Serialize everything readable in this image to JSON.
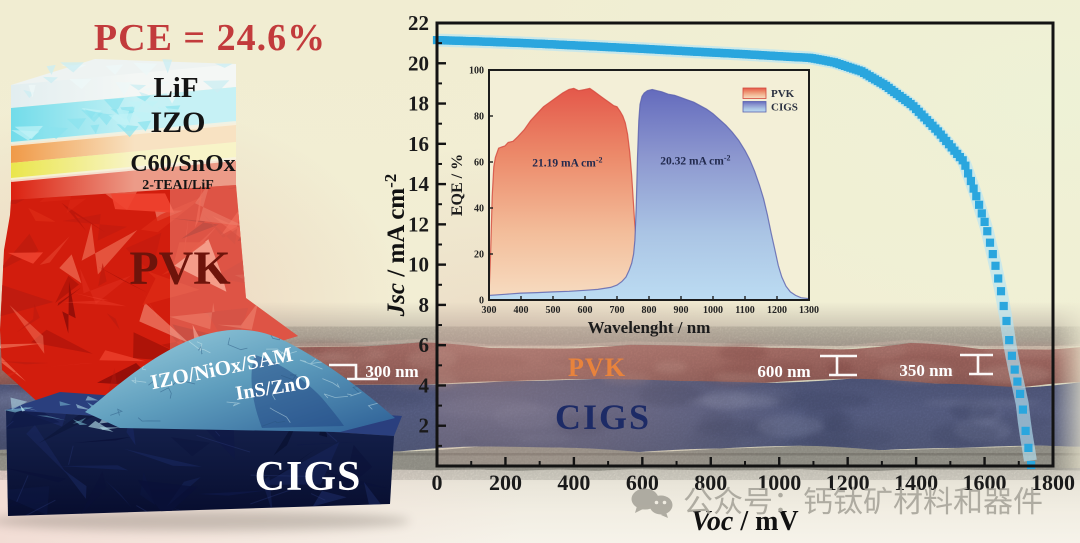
{
  "title": {
    "pce_label": "PCE = 24.6%",
    "color": "#c23b3c"
  },
  "schematic": {
    "layers": [
      {
        "label": "LiF",
        "color": "#e8f0f2"
      },
      {
        "label": "IZO",
        "color": "#56d2e4"
      },
      {
        "label": "C60/SnOx",
        "color": "#f0913c"
      },
      {
        "label": "2-TEAI/LiF",
        "color": "#ece84e"
      },
      {
        "label": "PVK",
        "color": "#d9200f"
      }
    ],
    "dome_labels": [
      {
        "label": "IZO/NiOx/SAM"
      },
      {
        "label": "InS/ZnO"
      }
    ],
    "base_label": "CIGS",
    "base_color": "#111c4e",
    "dome_color": "#4f8fae"
  },
  "sem": {
    "pvk_label": "PVK",
    "cigs_label": "CIGS",
    "pvk_label_color": "#e8833c",
    "cigs_label_color": "#1d2b66",
    "annotations": [
      {
        "text": "300 nm"
      },
      {
        "text": "600 nm"
      },
      {
        "text": "350 nm"
      }
    ],
    "pvk_band_color": "#b4736e",
    "cigs_band_color": "#5a6288",
    "substrate_color": "#a09e94"
  },
  "watermark": {
    "text": "公众号：钙钛矿材料和器件",
    "color": "#a8a59b"
  },
  "chart_data": [
    {
      "name": "jv_curve",
      "type": "scatter",
      "title": "",
      "xlabel": "Voc / mV",
      "xlabel_italic": "Voc",
      "xlabel_rest": " / mV",
      "ylabel": "Jsc / mA cm-2",
      "ylabel_italic": "Jsc",
      "ylabel_rest": " / mA cm",
      "ylabel_sup": "-2",
      "xlim": [
        0,
        1800
      ],
      "ylim": [
        0,
        22
      ],
      "x_ticks": [
        0,
        200,
        400,
        600,
        800,
        1000,
        1200,
        1400,
        1600,
        1800
      ],
      "y_ticks": [
        2,
        4,
        6,
        8,
        10,
        12,
        14,
        16,
        18,
        20,
        22
      ],
      "marker_color": "#2aa6de",
      "halo_color": "#b5e3f5",
      "series": [
        {
          "name": "J-V",
          "x": [
            0,
            150,
            300,
            450,
            600,
            750,
            900,
            1030,
            1090,
            1160,
            1240,
            1310,
            1390,
            1465,
            1540,
            1576,
            1606,
            1630,
            1649,
            1664,
            1675,
            1689,
            1700,
            1710,
            1716,
            1723,
            1731,
            1736
          ],
          "y": [
            21.15,
            21.07,
            20.97,
            20.85,
            20.72,
            20.58,
            20.45,
            20.32,
            20.27,
            20.05,
            19.6,
            18.9,
            17.9,
            16.6,
            15.1,
            13.4,
            11.8,
            10.1,
            8.6,
            7.2,
            5.9,
            4.7,
            3.9,
            3.1,
            2.2,
            1.4,
            0.6,
            0.05
          ]
        }
      ]
    },
    {
      "name": "eqe_inset",
      "type": "area",
      "xlabel": "Wavelenght / nm",
      "ylabel": "EQE / %",
      "xlim": [
        300,
        1300
      ],
      "ylim": [
        0,
        100
      ],
      "x_ticks": [
        300,
        400,
        500,
        600,
        700,
        800,
        900,
        1000,
        1100,
        1200,
        1300
      ],
      "y_ticks": [
        0,
        20,
        40,
        60,
        80,
        100
      ],
      "legend": [
        {
          "label": "PVK",
          "color_top": "#e4584a",
          "color_bottom": "#f7ddc2"
        },
        {
          "label": "CIGS",
          "color_top": "#646bbd",
          "color_bottom": "#bcdcf2"
        }
      ],
      "annotations": [
        {
          "text": "21.19 mA cm",
          "sup": "-2",
          "x": 545,
          "y": 58
        },
        {
          "text": "20.32 mA cm",
          "sup": "-2",
          "x": 945,
          "y": 59
        }
      ],
      "series": [
        {
          "name": "PVK",
          "x": [
            300,
            305,
            310,
            315,
            320,
            330,
            340,
            350,
            360,
            375,
            390,
            410,
            430,
            450,
            470,
            490,
            510,
            530,
            550,
            565,
            580,
            600,
            615,
            630,
            645,
            660,
            675,
            690,
            700,
            710,
            718,
            726,
            733,
            740,
            746,
            751,
            755,
            760,
            766,
            772,
            780,
            788,
            795,
            803,
            812,
            820,
            830
          ],
          "y": [
            2,
            20,
            45,
            58,
            62,
            66,
            66.5,
            67,
            68.5,
            69,
            71,
            74,
            78,
            81,
            84,
            86,
            88,
            90,
            91.5,
            92,
            91,
            91.5,
            92,
            90.5,
            89,
            87.5,
            86,
            84.5,
            84,
            82,
            80,
            77,
            72,
            64,
            54,
            43,
            34,
            27,
            22,
            19,
            15,
            11,
            8,
            5,
            3,
            1.5,
            0.8
          ]
        },
        {
          "name": "CIGS",
          "x": [
            300,
            350,
            400,
            450,
            500,
            550,
            600,
            640,
            680,
            700,
            715,
            728,
            738,
            746,
            752,
            756,
            760,
            764,
            768,
            772,
            778,
            785,
            795,
            810,
            825,
            840,
            860,
            880,
            900,
            920,
            940,
            960,
            980,
            1000,
            1020,
            1040,
            1060,
            1080,
            1100,
            1115,
            1130,
            1145,
            1158,
            1170,
            1182,
            1193,
            1204,
            1215,
            1228,
            1242,
            1258,
            1275,
            1300
          ],
          "y": [
            2,
            2.5,
            3,
            3.2,
            3.5,
            3.8,
            4.2,
            4.6,
            5.5,
            6.5,
            8,
            10,
            13,
            16,
            20,
            26,
            40,
            62,
            78,
            85,
            88.5,
            90,
            91,
            91.5,
            91,
            90.5,
            89.5,
            89,
            88,
            87,
            86,
            84.5,
            83,
            81,
            78.5,
            76,
            73,
            69.5,
            65,
            61,
            56,
            50,
            44,
            37,
            29,
            22,
            15,
            10,
            6,
            3.5,
            2,
            1,
            0.6
          ]
        }
      ]
    }
  ]
}
